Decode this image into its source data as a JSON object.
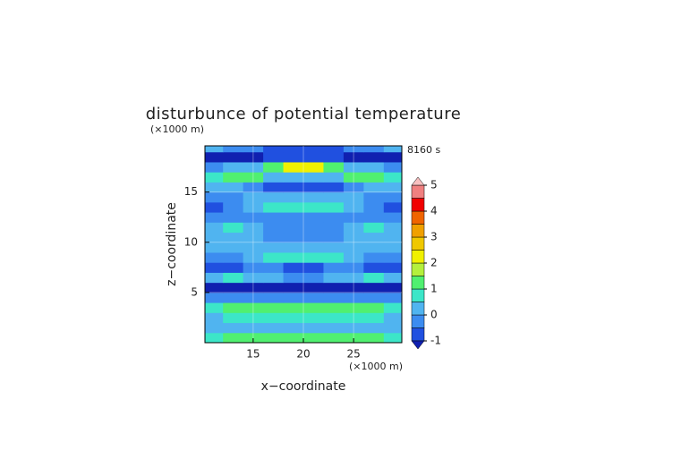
{
  "chart_data": {
    "type": "contour",
    "title": "disturbunce of potential temperature",
    "xlabel": "x−coordinate",
    "ylabel": "z−coordinate",
    "x_unit_label": "(×1000 m)",
    "y_unit_label": "(×1000 m)",
    "time_label": "8160 s",
    "x": [
      11,
      13,
      15,
      17,
      19,
      21,
      23,
      25,
      27,
      29
    ],
    "y": [
      0.5,
      1.5,
      2.5,
      3.5,
      4.5,
      5.5,
      6.5,
      7.5,
      8.5,
      9.5,
      10.5,
      11.5,
      12.5,
      13.5,
      14.5,
      15.5,
      16.5,
      17.5,
      18.5,
      19.5
    ],
    "values": [
      [
        0.6,
        1,
        1,
        1.1,
        1.2,
        1.2,
        1.1,
        1,
        1,
        0.6
      ],
      [
        0.2,
        0.3,
        0.4,
        0.3,
        0.2,
        0.2,
        0.3,
        0.4,
        0.3,
        0.2
      ],
      [
        0.3,
        0.6,
        0.7,
        0.8,
        0.5,
        0.5,
        0.8,
        0.7,
        0.6,
        0.3
      ],
      [
        0.8,
        1,
        1.2,
        1.2,
        1.2,
        1.2,
        1.2,
        1.2,
        1,
        0.8
      ],
      [
        -0.3,
        -0.3,
        -0.3,
        -0.2,
        -0.2,
        -0.2,
        -0.2,
        -0.3,
        -0.3,
        -0.3
      ],
      [
        -1.1,
        -1.1,
        -1.2,
        -1.2,
        -1.2,
        -1.2,
        -1.2,
        -1.2,
        -1.1,
        -1.1
      ],
      [
        0.2,
        0.6,
        0.3,
        0,
        -0.3,
        -0.3,
        0,
        0.3,
        0.6,
        0.2
      ],
      [
        -0.8,
        -0.6,
        -0.3,
        -0.4,
        -0.7,
        -0.7,
        -0.4,
        -0.3,
        -0.6,
        -0.8
      ],
      [
        -0.3,
        -0.3,
        0.2,
        0.6,
        0.6,
        0.6,
        0.6,
        0.2,
        -0.3,
        -0.3
      ],
      [
        0,
        0.2,
        0.3,
        0.2,
        0.2,
        0.2,
        0.2,
        0.3,
        0.2,
        0
      ],
      [
        0.2,
        0.2,
        0.2,
        -0.4,
        -0.4,
        -0.4,
        -0.4,
        0.2,
        0.2,
        0.2
      ],
      [
        0.3,
        0.6,
        0.2,
        -0.4,
        -0.5,
        -0.5,
        -0.4,
        0.2,
        0.6,
        0.3
      ],
      [
        -0.2,
        -0.2,
        -0.2,
        -0.2,
        -0.3,
        -0.3,
        -0.2,
        -0.2,
        -0.2,
        -0.2
      ],
      [
        -1,
        -0.4,
        0,
        0.6,
        0.7,
        0.7,
        0.6,
        0,
        -0.4,
        -1
      ],
      [
        -0.3,
        -0.2,
        0,
        0.2,
        0.3,
        0.3,
        0.2,
        0,
        -0.2,
        -0.3
      ],
      [
        0.2,
        0.3,
        -0.3,
        -0.8,
        -0.8,
        -0.8,
        -0.8,
        -0.3,
        0.3,
        0.2
      ],
      [
        0.5,
        1.2,
        1,
        0.3,
        0.2,
        0.2,
        0.3,
        1,
        1.2,
        0.5
      ],
      [
        -0.3,
        0,
        0.3,
        1,
        2,
        2,
        1,
        0.3,
        0,
        -0.3
      ],
      [
        -1.2,
        -1.2,
        -1.1,
        -0.8,
        -0.7,
        -0.7,
        -0.8,
        -1.1,
        -1.2,
        -1.2
      ],
      [
        0,
        -0.3,
        -0.3,
        -0.6,
        -0.6,
        -0.6,
        -0.6,
        -0.3,
        -0.3,
        0
      ]
    ],
    "levels": [
      -1,
      -0.5,
      0,
      0.5,
      1,
      1.5,
      2,
      2.5,
      3,
      3.5,
      4,
      4.5,
      5
    ],
    "colors": [
      "#1020b0",
      "#2050e0",
      "#3c8cf0",
      "#50b4f0",
      "#3ce6c8",
      "#50f070",
      "#b4f03c",
      "#f0f000",
      "#f0c800",
      "#f0a000",
      "#f06400",
      "#f00000",
      "#f08080",
      "#f8c0c0"
    ],
    "colorbar_ticks": [
      -1,
      0,
      1,
      2,
      3,
      4,
      5
    ],
    "xlim": [
      10.2,
      29.8
    ],
    "ylim": [
      0,
      19.6
    ],
    "xticks": [
      15,
      20,
      25
    ],
    "yticks": [
      5,
      10,
      15
    ],
    "grid": true
  }
}
